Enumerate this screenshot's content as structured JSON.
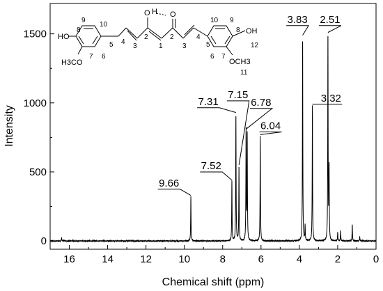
{
  "chart_data": {
    "type": "line",
    "xlabel": "Chemical shift (ppm)",
    "ylabel": "Intensity",
    "xlim": [
      17,
      0
    ],
    "ylim": [
      -60,
      1720
    ],
    "x_reversed": true,
    "x_ticks": [
      16,
      14,
      12,
      10,
      8,
      6,
      4,
      2,
      0
    ],
    "y_ticks": [
      0,
      500,
      1000,
      1500
    ],
    "grid": false,
    "baseline": 0,
    "series": [
      {
        "peaks": [
          {
            "x": 16.4,
            "y": 25
          },
          {
            "x": 9.66,
            "y": 320
          },
          {
            "x": 7.52,
            "y": 430
          },
          {
            "x": 7.31,
            "y": 920
          },
          {
            "x": 7.15,
            "y": 540
          },
          {
            "x": 6.78,
            "y": 800
          },
          {
            "x": 6.72,
            "y": 760
          },
          {
            "x": 6.04,
            "y": 760
          },
          {
            "x": 3.83,
            "y": 1480
          },
          {
            "x": 3.7,
            "y": 110
          },
          {
            "x": 3.32,
            "y": 980
          },
          {
            "x": 2.51,
            "y": 1500
          },
          {
            "x": 2.45,
            "y": 520
          },
          {
            "x": 2.0,
            "y": 60
          },
          {
            "x": 1.85,
            "y": 70
          },
          {
            "x": 1.24,
            "y": 120
          },
          {
            "x": 0.85,
            "y": 30
          }
        ]
      }
    ],
    "annotations": [
      {
        "text": "9.66",
        "peak_x": 9.66,
        "label_x": 10.8,
        "label_y": 395
      },
      {
        "text": "7.52",
        "peak_x": 7.52,
        "label_x": 8.6,
        "label_y": 520
      },
      {
        "text": "7.31",
        "peak_x": 7.31,
        "label_x": 8.75,
        "label_y": 985
      },
      {
        "text": "7.15",
        "peak_x": 7.15,
        "label_x": 7.2,
        "label_y": 1035
      },
      {
        "text": "6.78",
        "peak_x": 6.78,
        "label_x": 6.0,
        "label_y": 980
      },
      {
        "text": "6.04",
        "peak_x": 6.04,
        "label_x": 5.5,
        "label_y": 810
      },
      {
        "text": "3.83",
        "peak_x": 3.83,
        "label_x": 4.1,
        "label_y": 1580
      },
      {
        "text": "2.51",
        "peak_x": 2.51,
        "label_x": 2.4,
        "label_y": 1580
      },
      {
        "text": "3.32",
        "peak_x": 3.32,
        "label_x": 2.35,
        "label_y": 1010
      }
    ]
  },
  "molecule": {
    "atoms": [
      "O",
      "H",
      "O",
      "HO",
      "OH",
      "H3CO",
      "OCH3"
    ],
    "locants_left": [
      "8",
      "9",
      "10",
      "5",
      "4",
      "3",
      "2",
      "1",
      "6",
      "7"
    ],
    "locants_right": [
      "2",
      "3",
      "4",
      "5",
      "6",
      "7",
      "8",
      "9",
      "10",
      "12",
      "11"
    ]
  }
}
